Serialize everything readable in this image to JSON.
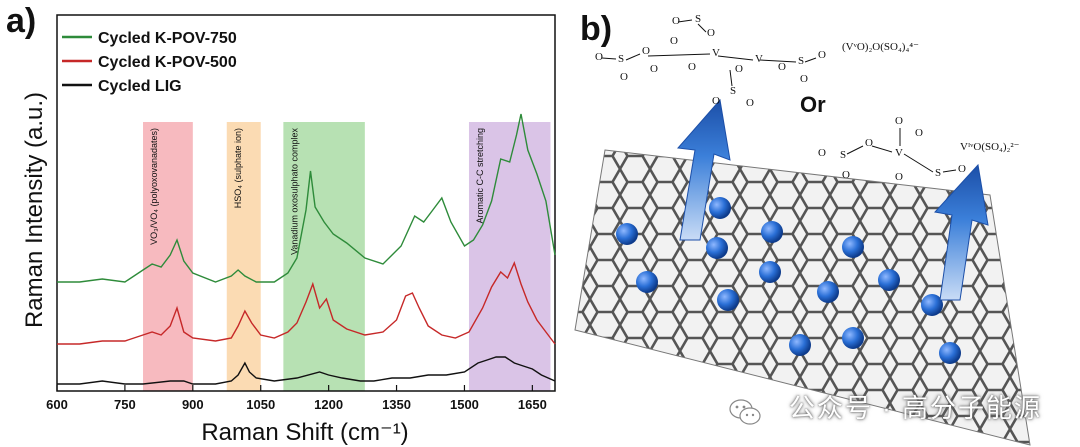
{
  "panel_a_label": "a)",
  "panel_b_label": "b)",
  "chart_data": {
    "type": "line",
    "title": "",
    "xlabel": "Raman Shift (cm⁻¹)",
    "ylabel": "Raman Intensity (a.u.)",
    "xlim": [
      600,
      1700
    ],
    "xticks": [
      600,
      750,
      900,
      1050,
      1200,
      1350,
      1500,
      1650
    ],
    "yticks": [],
    "legend_position": "top-left",
    "legend": [
      "Cycled K-POV-750",
      "Cycled K-POV-500",
      "Cycled LIG"
    ],
    "colors": {
      "k750": "#2e8b3a",
      "k500": "#c62828",
      "lig": "#111111"
    },
    "bands": [
      {
        "label": "VO₃/VO₄ (polyoxovanadates)",
        "x0": 790,
        "x1": 900,
        "color": "#f4a3aa"
      },
      {
        "label": "HSO₄ (sulphate ion)",
        "x0": 975,
        "x1": 1050,
        "color": "#f9cf9a"
      },
      {
        "label": "Vanadium oxosulphato complex",
        "x0": 1100,
        "x1": 1280,
        "color": "#9fd79a"
      },
      {
        "label": "Aromatic C-C stretching",
        "x0": 1510,
        "x1": 1690,
        "color": "#cdb0df"
      }
    ],
    "series": [
      {
        "name": "Cycled K-POV-750",
        "key": "k750",
        "x": [
          600,
          650,
          700,
          750,
          790,
          810,
          830,
          850,
          865,
          880,
          900,
          950,
          985,
          1000,
          1015,
          1040,
          1080,
          1110,
          1130,
          1150,
          1160,
          1170,
          1190,
          1210,
          1240,
          1280,
          1320,
          1360,
          1390,
          1410,
          1430,
          1450,
          1470,
          1500,
          1520,
          1540,
          1560,
          1580,
          1600,
          1615,
          1625,
          1640,
          1660,
          1680,
          1700
        ],
        "y": [
          0.06,
          0.06,
          0.07,
          0.06,
          0.1,
          0.12,
          0.11,
          0.15,
          0.2,
          0.13,
          0.09,
          0.06,
          0.08,
          0.1,
          0.08,
          0.06,
          0.06,
          0.09,
          0.14,
          0.3,
          0.43,
          0.31,
          0.26,
          0.22,
          0.19,
          0.14,
          0.12,
          0.18,
          0.28,
          0.26,
          0.3,
          0.34,
          0.26,
          0.18,
          0.2,
          0.25,
          0.33,
          0.47,
          0.46,
          0.55,
          0.62,
          0.5,
          0.42,
          0.33,
          0.15
        ]
      },
      {
        "name": "Cycled K-POV-500",
        "key": "k500",
        "x": [
          600,
          650,
          700,
          750,
          790,
          810,
          830,
          850,
          865,
          880,
          900,
          950,
          985,
          1000,
          1015,
          1030,
          1050,
          1080,
          1110,
          1130,
          1150,
          1165,
          1180,
          1195,
          1210,
          1240,
          1280,
          1320,
          1350,
          1370,
          1385,
          1400,
          1420,
          1450,
          1480,
          1510,
          1540,
          1560,
          1580,
          1595,
          1610,
          1625,
          1640,
          1660,
          1680,
          1700
        ],
        "y": [
          0.02,
          0.02,
          0.03,
          0.03,
          0.05,
          0.06,
          0.05,
          0.08,
          0.14,
          0.06,
          0.04,
          0.03,
          0.04,
          0.08,
          0.13,
          0.09,
          0.05,
          0.04,
          0.06,
          0.09,
          0.16,
          0.22,
          0.14,
          0.17,
          0.1,
          0.07,
          0.05,
          0.06,
          0.1,
          0.18,
          0.19,
          0.14,
          0.08,
          0.05,
          0.04,
          0.06,
          0.14,
          0.21,
          0.26,
          0.24,
          0.29,
          0.22,
          0.16,
          0.1,
          0.06,
          0.02
        ]
      },
      {
        "name": "Cycled LIG",
        "key": "lig",
        "x": [
          600,
          650,
          700,
          750,
          790,
          850,
          880,
          900,
          950,
          985,
          1000,
          1015,
          1025,
          1040,
          1080,
          1130,
          1180,
          1200,
          1230,
          1270,
          1300,
          1340,
          1380,
          1420,
          1460,
          1500,
          1530,
          1550,
          1570,
          1590,
          1610,
          1630,
          1650,
          1670,
          1700
        ],
        "y": [
          -0.02,
          -0.02,
          -0.01,
          -0.02,
          -0.02,
          -0.01,
          -0.01,
          -0.02,
          -0.02,
          -0.01,
          0.01,
          0.05,
          0.02,
          0.0,
          -0.01,
          0.0,
          0.02,
          0.01,
          0.0,
          -0.01,
          -0.01,
          0.0,
          0.0,
          0.01,
          0.01,
          0.02,
          0.05,
          0.06,
          0.07,
          0.07,
          0.05,
          0.04,
          0.03,
          0.01,
          -0.01
        ]
      }
    ]
  },
  "schematic": {
    "formula_top": "(VᵛO)₂O(SO₄)₄⁴⁻",
    "or_label": "Or",
    "formula_right": "VᴵᵛO(SO₄)₂²⁻"
  },
  "watermark": "公众号 · 高分子能源"
}
